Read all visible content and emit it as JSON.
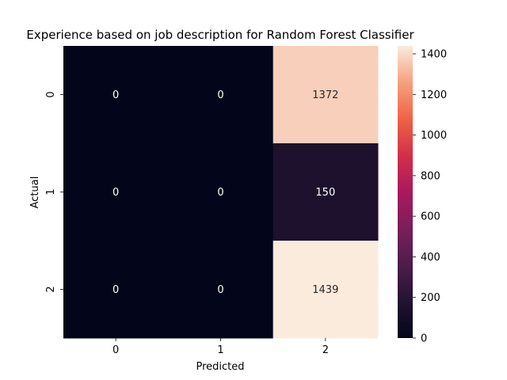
{
  "chart_data": {
    "type": "heatmap",
    "title": "Experience based on job description for Random Forest Classifier",
    "xlabel": "Predicted",
    "ylabel": "Actual",
    "x_categories": [
      "0",
      "1",
      "2"
    ],
    "y_categories": [
      "0",
      "1",
      "2"
    ],
    "values": [
      [
        0,
        0,
        1372
      ],
      [
        0,
        0,
        150
      ],
      [
        0,
        0,
        1439
      ]
    ],
    "colorbar": {
      "colormap": "rocket",
      "range": [
        0,
        1439
      ],
      "ticks": [
        0,
        200,
        400,
        600,
        800,
        1000,
        1200,
        1400
      ]
    },
    "grid": false,
    "legend": "colorbar-right"
  }
}
